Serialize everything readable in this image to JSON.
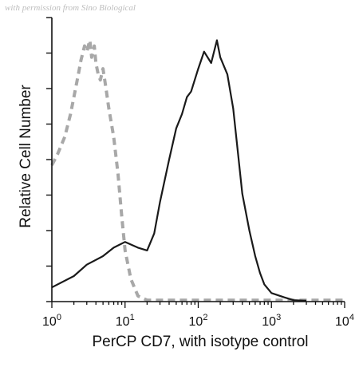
{
  "watermark": "with permission from Sino Biological",
  "chart_data": {
    "type": "line",
    "title": "",
    "xlabel": "PerCP CD7, with isotype control",
    "ylabel": "Relative Cell Number",
    "x_scale": "log",
    "xlim": [
      1,
      10000
    ],
    "ylim": [
      0,
      100
    ],
    "x_ticks": [
      {
        "base": "10",
        "exp": "0"
      },
      {
        "base": "10",
        "exp": "1"
      },
      {
        "base": "10",
        "exp": "2"
      },
      {
        "base": "10",
        "exp": "3"
      },
      {
        "base": "10",
        "exp": "4"
      }
    ],
    "grid": false,
    "legend": "none",
    "series": [
      {
        "style": "dashed",
        "color": "#a8a8a8",
        "x": [
          1,
          1.2,
          1.5,
          1.8,
          2.0,
          2.3,
          2.5,
          2.8,
          3.0,
          3.3,
          3.5,
          3.8,
          4.0,
          4.3,
          4.6,
          5.0,
          5.5,
          6.0,
          7.0,
          8.0,
          9.0,
          10,
          12,
          15,
          20,
          50,
          100,
          1000,
          10000
        ],
        "y": [
          48,
          52,
          58,
          66,
          72,
          80,
          85,
          90,
          88,
          92,
          86,
          90,
          84,
          80,
          78,
          82,
          75,
          68,
          58,
          45,
          30,
          18,
          8,
          2,
          0.5,
          0.5,
          0.5,
          0.5,
          0.5
        ]
      },
      {
        "style": "solid",
        "color": "#1a1a1a",
        "x": [
          1,
          2,
          3,
          5,
          7,
          10,
          15,
          20,
          25,
          30,
          40,
          50,
          60,
          70,
          80,
          100,
          120,
          150,
          180,
          200,
          250,
          300,
          350,
          400,
          500,
          600,
          700,
          800,
          1000,
          1500,
          2000,
          3000
        ],
        "y": [
          5,
          9,
          13,
          16,
          19,
          21,
          19,
          18,
          24,
          35,
          50,
          61,
          66,
          72,
          74,
          82,
          88,
          84,
          92,
          86,
          80,
          68,
          52,
          38,
          25,
          16,
          10,
          6,
          3,
          1.5,
          0.5,
          0.3
        ]
      }
    ]
  }
}
